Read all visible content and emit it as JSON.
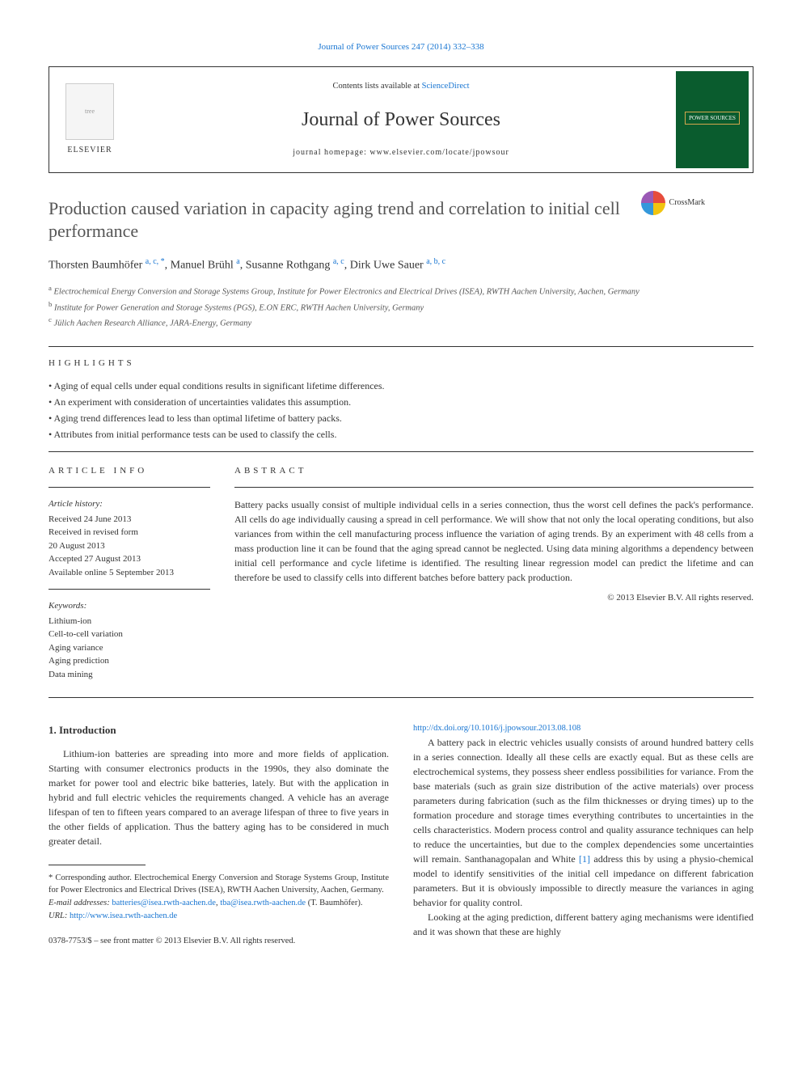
{
  "topLink": {
    "text": "Journal of Power Sources 247 (2014) 332–338",
    "href": "#"
  },
  "headerBox": {
    "contentsLine": {
      "prefix": "Contents lists available at ",
      "linkText": "ScienceDirect"
    },
    "journalTitle": "Journal of Power Sources",
    "homepage": "journal homepage: www.elsevier.com/locate/jpowsour",
    "elsevierLabel": "ELSEVIER",
    "coverTitle": "POWER SOURCES"
  },
  "crossmark": "CrossMark",
  "title": "Production caused variation in capacity aging trend and correlation to initial cell performance",
  "authors": [
    {
      "name": "Thorsten Baumhöfer",
      "sup": "a, c, *"
    },
    {
      "name": "Manuel Brühl",
      "sup": "a"
    },
    {
      "name": "Susanne Rothgang",
      "sup": "a, c"
    },
    {
      "name": "Dirk Uwe Sauer",
      "sup": "a, b, c"
    }
  ],
  "affiliations": [
    {
      "sup": "a",
      "text": "Electrochemical Energy Conversion and Storage Systems Group, Institute for Power Electronics and Electrical Drives (ISEA), RWTH Aachen University, Aachen, Germany"
    },
    {
      "sup": "b",
      "text": "Institute for Power Generation and Storage Systems (PGS), E.ON ERC, RWTH Aachen University, Germany"
    },
    {
      "sup": "c",
      "text": "Jülich Aachen Research Alliance, JARA-Energy, Germany"
    }
  ],
  "highlightsLabel": "HIGHLIGHTS",
  "highlights": [
    "Aging of equal cells under equal conditions results in significant lifetime differences.",
    "An experiment with consideration of uncertainties validates this assumption.",
    "Aging trend differences lead to less than optimal lifetime of battery packs.",
    "Attributes from initial performance tests can be used to classify the cells."
  ],
  "articleInfoLabel": "ARTICLE INFO",
  "abstractLabel": "ABSTRACT",
  "history": {
    "label": "Article history:",
    "lines": [
      "Received 24 June 2013",
      "Received in revised form",
      "20 August 2013",
      "Accepted 27 August 2013",
      "Available online 5 September 2013"
    ]
  },
  "keywordsLabel": "Keywords:",
  "keywords": [
    "Lithium-ion",
    "Cell-to-cell variation",
    "Aging variance",
    "Aging prediction",
    "Data mining"
  ],
  "abstract": "Battery packs usually consist of multiple individual cells in a series connection, thus the worst cell defines the pack's performance. All cells do age individually causing a spread in cell performance. We will show that not only the local operating conditions, but also variances from within the cell manufacturing process influence the variation of aging trends. By an experiment with 48 cells from a mass production line it can be found that the aging spread cannot be neglected. Using data mining algorithms a dependency between initial cell performance and cycle lifetime is identified. The resulting linear regression model can predict the lifetime and can therefore be used to classify cells into different batches before battery pack production.",
  "copyright": "© 2013 Elsevier B.V. All rights reserved.",
  "introHeading": "1. Introduction",
  "introPara1": "Lithium-ion batteries are spreading into more and more fields of application. Starting with consumer electronics products in the 1990s, they also dominate the market for power tool and electric bike batteries, lately. But with the application in hybrid and full electric vehicles the requirements changed. A vehicle has an average lifespan of ten to fifteen years compared to an average lifespan of three to five years in the other fields of application. Thus the battery aging has to be considered in much greater detail.",
  "introPara2a": "A battery pack in electric vehicles usually consists of around hundred battery cells in a series connection. Ideally all these cells are exactly equal. But as these cells are electrochemical systems, they possess sheer endless possibilities for variance. From the base materials (such as grain size distribution of the active materials) over process parameters during fabrication (such as the film thicknesses or drying times) up to the formation procedure and storage times everything contributes to uncertainties in the cells characteristics. Modern process control and quality assurance techniques can help to reduce the uncertainties, but due to the complex dependencies some uncertainties will remain. Santhanagopalan and White ",
  "ref1": "[1]",
  "introPara2b": " address this by using a physio-chemical model to identify sensitivities of the initial cell impedance on different fabrication parameters. But it is obviously impossible to directly measure the variances in aging behavior for quality control.",
  "introPara3": "Looking at the aging prediction, different battery aging mechanisms were identified and it was shown that these are highly",
  "corresponding": {
    "label": "* Corresponding author. Electrochemical Energy Conversion and Storage Systems Group, Institute for Power Electronics and Electrical Drives (ISEA), RWTH Aachen University, Aachen, Germany.",
    "emailLabel": "E-mail addresses:",
    "email1": "batteries@isea.rwth-aachen.de",
    "email2": "tba@isea.rwth-aachen.de",
    "emailSuffix": "(T. Baumhöfer).",
    "urlLabel": "URL:",
    "url": "http://www.isea.rwth-aachen.de"
  },
  "bottomInfo": {
    "line1": "0378-7753/$ – see front matter © 2013 Elsevier B.V. All rights reserved.",
    "doi": "http://dx.doi.org/10.1016/j.jpowsour.2013.08.108"
  },
  "colors": {
    "link": "#1976d2",
    "text": "#333333",
    "coverBg": "#0a5c2e",
    "coverBorder": "#d4a74e"
  }
}
